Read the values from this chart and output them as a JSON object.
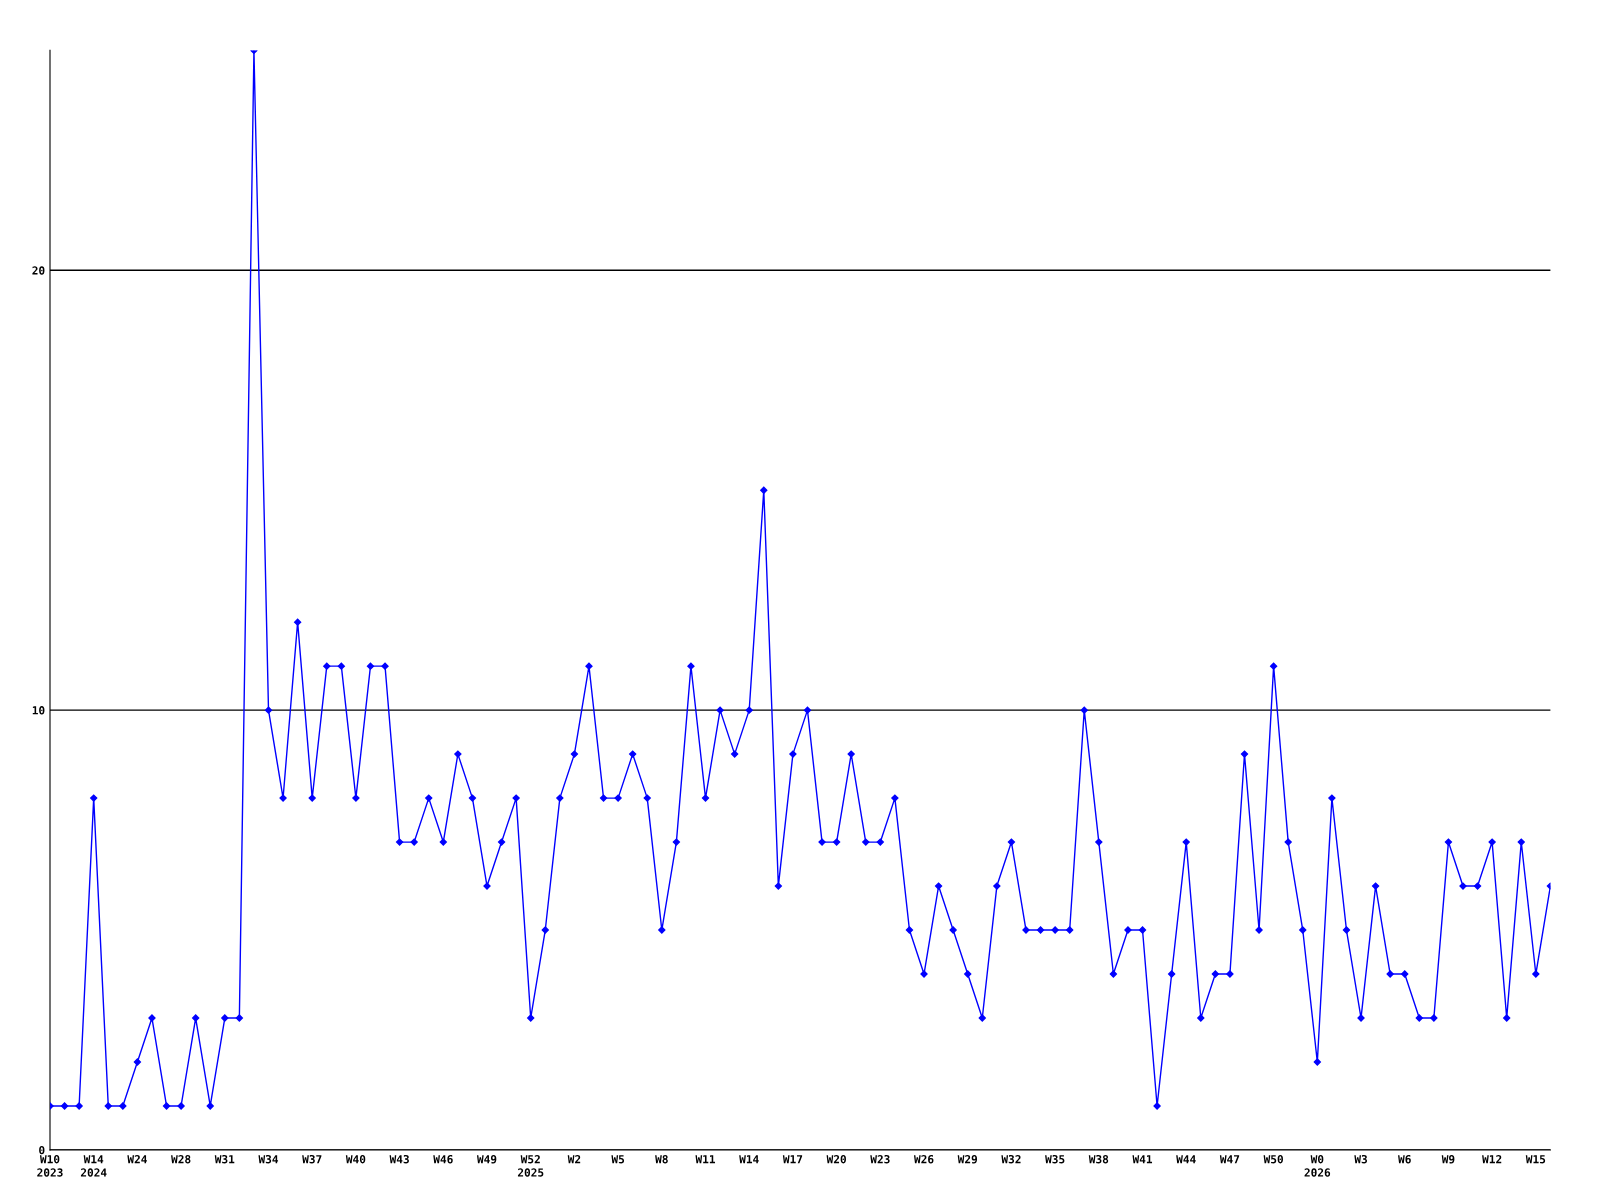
{
  "chart_data": {
    "type": "line",
    "categories": [
      "W10\n2023",
      null,
      null,
      "W14\n2024",
      null,
      null,
      "W24",
      null,
      null,
      "W28",
      null,
      null,
      "W31",
      null,
      null,
      "W34",
      null,
      null,
      "W37",
      null,
      null,
      "W40",
      null,
      null,
      "W43",
      null,
      null,
      "W46",
      null,
      null,
      "W49",
      null,
      null,
      "W52\n2025",
      null,
      null,
      "W2",
      null,
      null,
      "W5",
      null,
      null,
      "W8",
      null,
      null,
      "W11",
      null,
      null,
      "W14",
      null,
      null,
      "W17",
      null,
      null,
      "W20",
      null,
      null,
      "W23",
      null,
      null,
      "W26",
      null,
      null,
      "W29",
      null,
      null,
      "W32",
      null,
      null,
      "W35",
      null,
      null,
      "W38",
      null,
      null,
      "W41",
      null,
      null,
      "W44",
      null,
      null,
      "W47",
      null,
      null,
      "W50",
      null,
      null,
      "W0\n2026",
      null,
      null,
      "W3",
      null,
      null,
      "W6",
      null,
      null,
      "W9",
      null,
      null,
      "W12",
      null,
      null,
      "W15",
      null
    ],
    "series": [
      {
        "color": "#0000ff",
        "values": [
          1,
          1,
          1,
          8,
          1,
          1,
          2,
          3,
          1,
          1,
          3,
          1,
          3,
          3,
          25,
          10,
          8,
          12,
          8,
          11,
          11,
          8,
          11,
          11,
          7,
          7,
          8,
          7,
          9,
          8,
          6,
          7,
          8,
          3,
          5,
          8,
          9,
          11,
          8,
          8,
          9,
          8,
          5,
          7,
          11,
          8,
          10,
          9,
          10,
          15,
          6,
          9,
          10,
          7,
          7,
          9,
          7,
          7,
          8,
          5,
          4,
          6,
          5,
          4,
          3,
          6,
          7,
          5,
          5,
          5,
          5,
          10,
          7,
          4,
          5,
          5,
          1,
          4,
          7,
          3,
          4,
          4,
          9,
          5,
          11,
          7,
          5,
          2,
          8,
          5,
          3,
          6,
          4,
          4,
          3,
          3,
          7,
          6,
          6,
          7,
          3,
          7,
          4,
          6
        ]
      }
    ],
    "ylim": [
      0,
      25
    ],
    "yticks": [
      0,
      10,
      20
    ],
    "grid": "y",
    "marker": "diamond",
    "line_style": "solid"
  }
}
